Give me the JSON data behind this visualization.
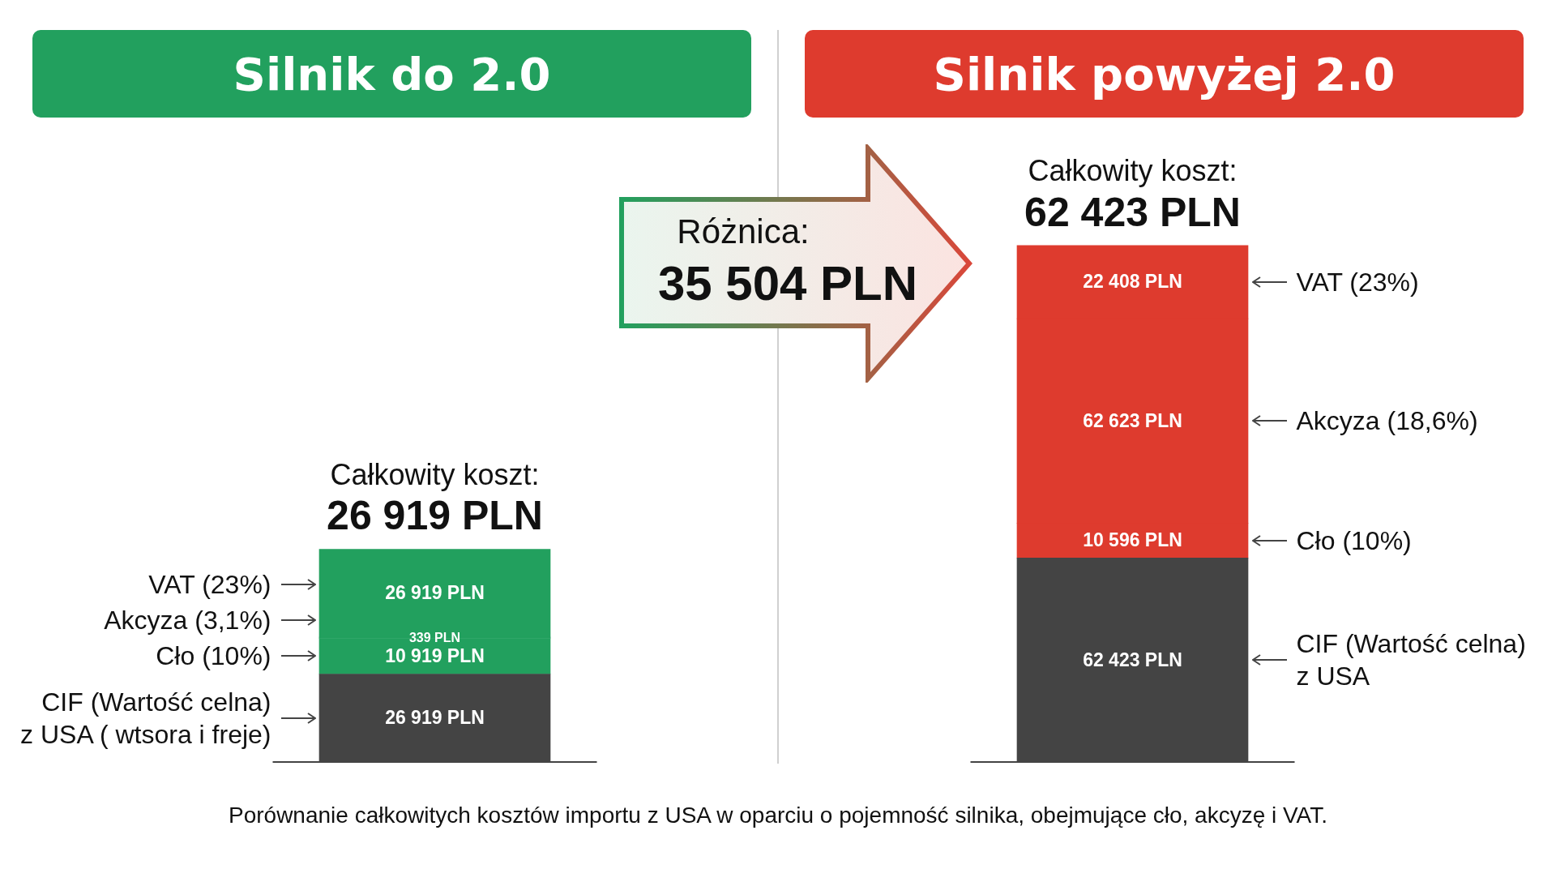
{
  "chart_data": {
    "type": "bar",
    "stacked": true,
    "categories": [
      "Silnik do 2.0",
      "Silnik powyżej 2.0"
    ],
    "series": [
      {
        "colors": [
          "#444444",
          "#444444"
        ],
        "values": [
          26919,
          62423
        ],
        "value_labels": [
          "26 919 PLN",
          "62 423 PLN"
        ]
      },
      {
        "colors": [
          "#22a05e",
          "#de3b2e"
        ],
        "values": [
          10919,
          10596
        ],
        "value_labels": [
          "10 919 PLN",
          "10 596 PLN"
        ]
      },
      {
        "colors": [
          "#22a05e",
          "#de3b2e"
        ],
        "values": [
          339,
          62623
        ],
        "value_labels": [
          "339 PLN",
          "62 623 PLN"
        ]
      },
      {
        "colors": [
          "#22a05e",
          "#de3b2e"
        ],
        "values": [
          26919,
          22408
        ],
        "value_labels": [
          "26 919 PLN",
          "22 408 PLN"
        ]
      }
    ],
    "annotations": [
      "Całkowity koszt:",
      "Całkowity koszt:",
      "26 919 PLN",
      "62 423 PLN",
      "Różnica:",
      "35 504 PLN",
      "Porównanie całkowitych kosztów importu z USA w oparciu o pojemność silnika, obejmujące cło, akcyzę i VAT.",
      "CIF (Wartość celna)\nz USA ( wtsora i freje)",
      "Cło (10%)",
      "Akcyza (3,1%)",
      "VAT (23%)",
      "CIF (Wartość celna)\nz USA",
      "Cło (10%)",
      "Akcyza (18,6%)",
      "VAT (23%)"
    ],
    "grid": false,
    "legend": false
  }
}
